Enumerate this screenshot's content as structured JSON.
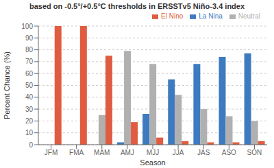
{
  "chart_data": {
    "type": "bar",
    "title": "based on -0.5°/+0.5°C thresholds in ERSSTv5 Niño-3.4 index",
    "xlabel": "Season",
    "ylabel": "Percent Chance (%)",
    "categories": [
      "JFM",
      "FMA",
      "MAM",
      "AMJ",
      "MJJ",
      "JJA",
      "JAS",
      "ASO",
      "SON"
    ],
    "series": [
      {
        "name": "La Nina",
        "color": "#3d7abf",
        "values": [
          0,
          0,
          0,
          2,
          26,
          55,
          68,
          74,
          77
        ]
      },
      {
        "name": "Neutral",
        "color": "#b0b0b0",
        "values": [
          0,
          0,
          25,
          79,
          68,
          42,
          30,
          24,
          20
        ]
      },
      {
        "name": "El Nino",
        "color": "#e05c40",
        "values": [
          100,
          100,
          75,
          19,
          6,
          3,
          2,
          2,
          3
        ]
      }
    ],
    "ylim": [
      0,
      100
    ],
    "yticks": [
      0,
      10,
      20,
      30,
      40,
      50,
      60,
      70,
      80,
      90,
      100
    ],
    "grid": true,
    "legend": "upper right"
  }
}
